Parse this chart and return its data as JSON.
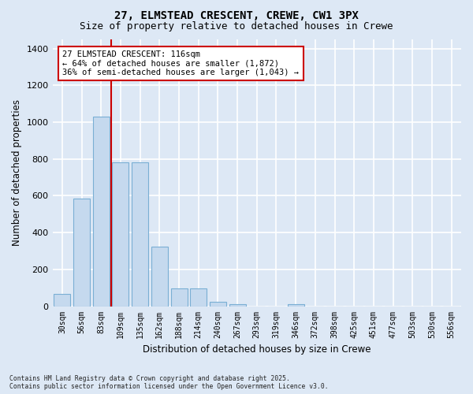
{
  "title_line1": "27, ELMSTEAD CRESCENT, CREWE, CW1 3PX",
  "title_line2": "Size of property relative to detached houses in Crewe",
  "xlabel": "Distribution of detached houses by size in Crewe",
  "ylabel": "Number of detached properties",
  "bar_labels": [
    "30sqm",
    "56sqm",
    "83sqm",
    "109sqm",
    "135sqm",
    "162sqm",
    "188sqm",
    "214sqm",
    "240sqm",
    "267sqm",
    "293sqm",
    "319sqm",
    "346sqm",
    "372sqm",
    "398sqm",
    "425sqm",
    "451sqm",
    "477sqm",
    "503sqm",
    "530sqm",
    "556sqm"
  ],
  "bar_values": [
    65,
    585,
    1030,
    780,
    780,
    325,
    95,
    95,
    22,
    12,
    0,
    0,
    12,
    0,
    0,
    0,
    0,
    0,
    0,
    0,
    0
  ],
  "bar_color": "#c5d9ee",
  "bar_edge_color": "#7aafd4",
  "vline_color": "#cc0000",
  "vline_x": 2.5,
  "annotation_text": "27 ELMSTEAD CRESCENT: 116sqm\n← 64% of detached houses are smaller (1,872)\n36% of semi-detached houses are larger (1,043) →",
  "annotation_box_facecolor": "#ffffff",
  "annotation_box_edgecolor": "#cc0000",
  "ylim_max": 1450,
  "yticks": [
    0,
    200,
    400,
    600,
    800,
    1000,
    1200,
    1400
  ],
  "background_color": "#dde8f5",
  "grid_color": "#ffffff",
  "footer_text": "Contains HM Land Registry data © Crown copyright and database right 2025.\nContains public sector information licensed under the Open Government Licence v3.0."
}
